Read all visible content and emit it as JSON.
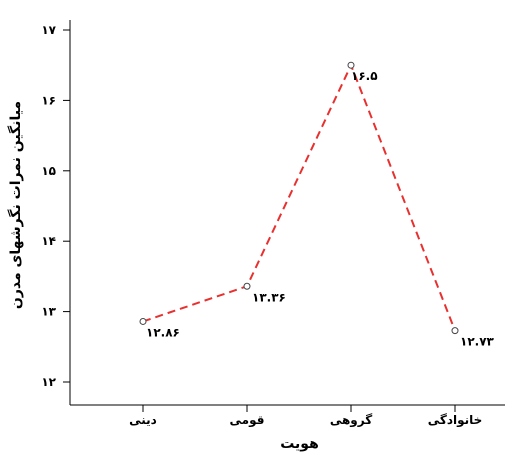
{
  "chart_data": {
    "type": "line",
    "categories": [
      "دینی",
      "قومی",
      "گروهی",
      "خانوادگی"
    ],
    "series": [
      {
        "values": [
          12.86,
          13.36,
          16.5,
          12.73
        ]
      }
    ],
    "data_labels": [
      "۱۲.۸۶",
      "۱۳.۳۶",
      "۱۶.۵",
      "۱۲.۷۳"
    ],
    "xlabel": "هویت",
    "ylabel": "میانگین نمرات نگرشهای مدرن",
    "ylim": [
      11.8,
      17.1
    ],
    "yticks": [
      {
        "value": 12,
        "label": "۱۲"
      },
      {
        "value": 13,
        "label": "۱۳"
      },
      {
        "value": 14,
        "label": "۱۴"
      },
      {
        "value": 15,
        "label": "۱۵"
      },
      {
        "value": 16,
        "label": "۱۶"
      },
      {
        "value": 17,
        "label": "۱۷"
      }
    ],
    "grid": false,
    "line_color": "#e8312f",
    "line_style": "dashed",
    "marker": "open-circle"
  }
}
